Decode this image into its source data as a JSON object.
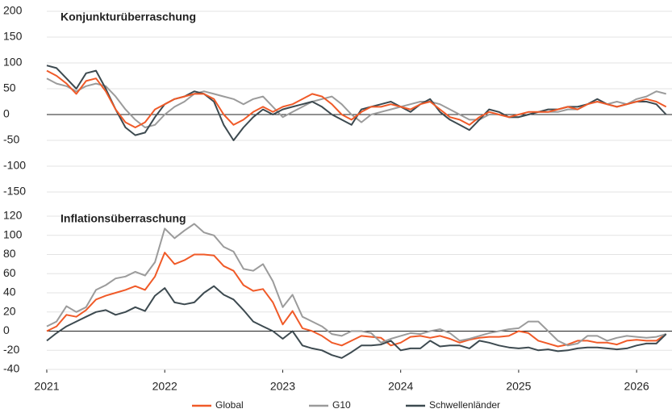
{
  "chart_data": [
    {
      "type": "line",
      "title": "Konjunkturüberraschung",
      "x": [
        2021,
        2021.083,
        2021.167,
        2021.25,
        2021.333,
        2021.417,
        2021.5,
        2021.583,
        2021.667,
        2021.75,
        2021.833,
        2021.917,
        2022,
        2022.083,
        2022.167,
        2022.25,
        2022.333,
        2022.417,
        2022.5,
        2022.583,
        2022.667,
        2022.75,
        2022.833,
        2022.917,
        2023,
        2023.083,
        2023.167,
        2023.25,
        2023.333,
        2023.417,
        2023.5,
        2023.583,
        2023.667,
        2023.75,
        2023.833,
        2023.917,
        2024,
        2024.083,
        2024.167,
        2024.25,
        2024.333,
        2024.417,
        2024.5,
        2024.583,
        2024.667,
        2024.75,
        2024.833,
        2024.917,
        2025,
        2025.083,
        2025.167,
        2025.25,
        2025.333,
        2025.417,
        2025.5,
        2025.583,
        2025.667,
        2025.75,
        2025.833,
        2025.917,
        2026,
        2026.083,
        2026.167,
        2026.25
      ],
      "series": [
        {
          "color": "#9b9b9b",
          "values": [
            70,
            60,
            55,
            45,
            55,
            60,
            55,
            35,
            10,
            -10,
            -25,
            -20,
            0,
            15,
            25,
            40,
            45,
            40,
            35,
            30,
            20,
            30,
            35,
            15,
            -5,
            5,
            15,
            25,
            30,
            35,
            20,
            0,
            -15,
            0,
            5,
            10,
            15,
            20,
            25,
            25,
            20,
            10,
            0,
            -10,
            -10,
            0,
            0,
            -5,
            -5,
            0,
            5,
            5,
            5,
            10,
            10,
            20,
            25,
            20,
            25,
            20,
            30,
            35,
            45,
            40
          ]
        },
        {
          "color": "#3d4a50",
          "values": [
            95,
            90,
            70,
            50,
            80,
            85,
            50,
            10,
            -25,
            -40,
            -35,
            -5,
            20,
            30,
            35,
            45,
            40,
            25,
            -20,
            -50,
            -25,
            -5,
            10,
            0,
            10,
            15,
            20,
            25,
            15,
            0,
            -10,
            -20,
            10,
            15,
            20,
            25,
            15,
            5,
            20,
            30,
            5,
            -10,
            -20,
            -30,
            -10,
            10,
            5,
            -5,
            -5,
            0,
            5,
            10,
            10,
            15,
            15,
            20,
            30,
            20,
            15,
            20,
            25,
            25,
            20,
            0
          ]
        },
        {
          "color": "#f05a28",
          "values": [
            85,
            75,
            60,
            40,
            65,
            70,
            45,
            10,
            -15,
            -25,
            -15,
            10,
            20,
            30,
            35,
            40,
            40,
            30,
            0,
            -20,
            -10,
            5,
            15,
            5,
            15,
            20,
            30,
            40,
            35,
            20,
            0,
            -10,
            5,
            15,
            15,
            20,
            15,
            10,
            20,
            25,
            10,
            -5,
            -10,
            -20,
            -5,
            5,
            0,
            -5,
            0,
            5,
            5,
            5,
            10,
            15,
            10,
            20,
            25,
            20,
            15,
            20,
            25,
            30,
            25,
            15
          ]
        }
      ],
      "xlim": [
        2021,
        2026.3
      ],
      "ylim": [
        -150,
        200
      ],
      "yticks": [
        -150,
        -100,
        -50,
        0,
        50,
        100,
        150,
        200
      ],
      "grid": true
    },
    {
      "type": "line",
      "title": "Inflationsüberraschung",
      "x": [
        2021,
        2021.083,
        2021.167,
        2021.25,
        2021.333,
        2021.417,
        2021.5,
        2021.583,
        2021.667,
        2021.75,
        2021.833,
        2021.917,
        2022,
        2022.083,
        2022.167,
        2022.25,
        2022.333,
        2022.417,
        2022.5,
        2022.583,
        2022.667,
        2022.75,
        2022.833,
        2022.917,
        2023,
        2023.083,
        2023.167,
        2023.25,
        2023.333,
        2023.417,
        2023.5,
        2023.583,
        2023.667,
        2023.75,
        2023.833,
        2023.917,
        2024,
        2024.083,
        2024.167,
        2024.25,
        2024.333,
        2024.417,
        2024.5,
        2024.583,
        2024.667,
        2024.75,
        2024.833,
        2024.917,
        2025,
        2025.083,
        2025.167,
        2025.25,
        2025.333,
        2025.417,
        2025.5,
        2025.583,
        2025.667,
        2025.75,
        2025.833,
        2025.917,
        2026,
        2026.083,
        2026.167,
        2026.25
      ],
      "series": [
        {
          "name": "Global",
          "color": "#f05a28",
          "values": [
            0,
            5,
            17,
            15,
            22,
            33,
            37,
            40,
            43,
            47,
            43,
            57,
            82,
            70,
            74,
            80,
            80,
            79,
            68,
            63,
            48,
            42,
            44,
            30,
            7,
            21,
            3,
            0,
            -5,
            -12,
            -15,
            -10,
            -5,
            -6,
            -7,
            -15,
            -12,
            -6,
            -5,
            -7,
            -5,
            -8,
            -12,
            -9,
            -7,
            -6,
            -6,
            -5,
            0,
            -2,
            -10,
            -13,
            -16,
            -14,
            -10,
            -10,
            -12,
            -12,
            -14,
            -10,
            -9,
            -10,
            -10,
            -3
          ]
        },
        {
          "name": "G10",
          "color": "#9b9b9b",
          "values": [
            5,
            10,
            26,
            20,
            25,
            43,
            48,
            55,
            57,
            62,
            58,
            72,
            107,
            97,
            105,
            112,
            103,
            100,
            88,
            83,
            65,
            63,
            70,
            52,
            25,
            38,
            15,
            10,
            5,
            -3,
            -5,
            0,
            0,
            -2,
            -12,
            -8,
            -5,
            -2,
            -3,
            0,
            2,
            -2,
            -10,
            -8,
            -5,
            -2,
            0,
            2,
            3,
            10,
            10,
            0,
            -10,
            -15,
            -13,
            -5,
            -5,
            -10,
            -7,
            -5,
            -6,
            -7,
            -6,
            -3
          ]
        },
        {
          "name": "Schwellenländer",
          "color": "#3d4a50",
          "values": [
            -10,
            -2,
            5,
            10,
            15,
            20,
            22,
            17,
            20,
            25,
            21,
            37,
            45,
            30,
            28,
            30,
            40,
            47,
            38,
            33,
            22,
            10,
            5,
            0,
            -8,
            0,
            -15,
            -18,
            -20,
            -25,
            -28,
            -22,
            -15,
            -15,
            -14,
            -10,
            -20,
            -18,
            -18,
            -10,
            -16,
            -15,
            -15,
            -18,
            -10,
            -12,
            -15,
            -17,
            -18,
            -17,
            -20,
            -19,
            -21,
            -20,
            -18,
            -17,
            -17,
            -18,
            -19,
            -18,
            -15,
            -13,
            -13,
            -3
          ]
        }
      ],
      "xlim": [
        2021,
        2026.3
      ],
      "xticks": [
        2021,
        2022,
        2023,
        2024,
        2025,
        2026
      ],
      "ylim": [
        -40,
        120
      ],
      "yticks": [
        -40,
        -20,
        0,
        20,
        40,
        60,
        80,
        100,
        120
      ],
      "grid": true
    }
  ]
}
